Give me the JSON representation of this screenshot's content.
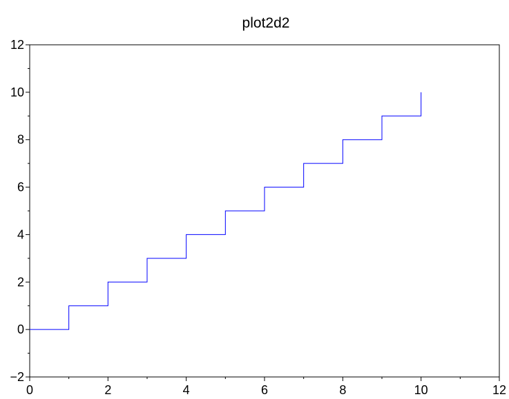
{
  "chart_data": {
    "type": "line",
    "title": "plot2d2",
    "xlabel": "",
    "ylabel": "",
    "xlim": [
      0,
      12
    ],
    "ylim": [
      -2,
      12
    ],
    "x_ticks": [
      0,
      2,
      4,
      6,
      8,
      10,
      12
    ],
    "y_ticks": [
      -2,
      0,
      2,
      4,
      6,
      8,
      10,
      12
    ],
    "x_tick_labels": [
      "0",
      "2",
      "4",
      "6",
      "8",
      "10",
      "12"
    ],
    "y_tick_labels": [
      "−2",
      "0",
      "2",
      "4",
      "6",
      "8",
      "10",
      "12"
    ],
    "grid": false,
    "step": true,
    "series": [
      {
        "color": "#0000ff",
        "x": [
          0,
          1,
          2,
          3,
          4,
          5,
          6,
          7,
          8,
          9,
          10
        ],
        "y": [
          0,
          1,
          2,
          3,
          4,
          5,
          6,
          7,
          8,
          9,
          10
        ]
      }
    ]
  }
}
